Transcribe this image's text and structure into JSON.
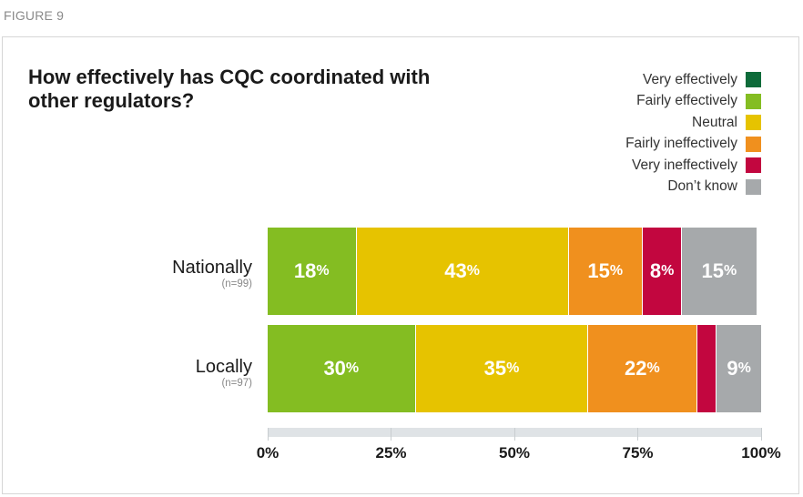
{
  "figure_label": "FIGURE 9",
  "chart_data": {
    "type": "bar",
    "orientation": "horizontal",
    "stacked": true,
    "title": "How effectively has CQC coordinated with other regulators?",
    "categories": [
      {
        "name": "Nationally",
        "n": "(n=99)"
      },
      {
        "name": "Locally",
        "n": "(n=97)"
      }
    ],
    "series": [
      {
        "name": "Very effectively",
        "color": "#0e6b3a",
        "values": [
          0,
          0
        ]
      },
      {
        "name": "Fairly effectively",
        "color": "#84bd22",
        "values": [
          18,
          30
        ]
      },
      {
        "name": "Neutral",
        "color": "#e6c300",
        "values": [
          43,
          35
        ]
      },
      {
        "name": "Fairly ineffectively",
        "color": "#f0901e",
        "values": [
          15,
          22
        ]
      },
      {
        "name": "Very ineffectively",
        "color": "#c2063f",
        "values": [
          8,
          4
        ]
      },
      {
        "name": "Don’t know",
        "color": "#a6a9ab",
        "values": [
          15,
          9
        ]
      }
    ],
    "data_labels": [
      [
        "",
        "18",
        "43",
        "15",
        "8",
        "15"
      ],
      [
        "",
        "30",
        "35",
        "22",
        "",
        "9"
      ]
    ],
    "label_suffix": "%",
    "xlim": [
      0,
      100
    ],
    "xticks": [
      "0%",
      "25%",
      "50%",
      "75%",
      "100%"
    ],
    "legend_position": "top-right"
  }
}
